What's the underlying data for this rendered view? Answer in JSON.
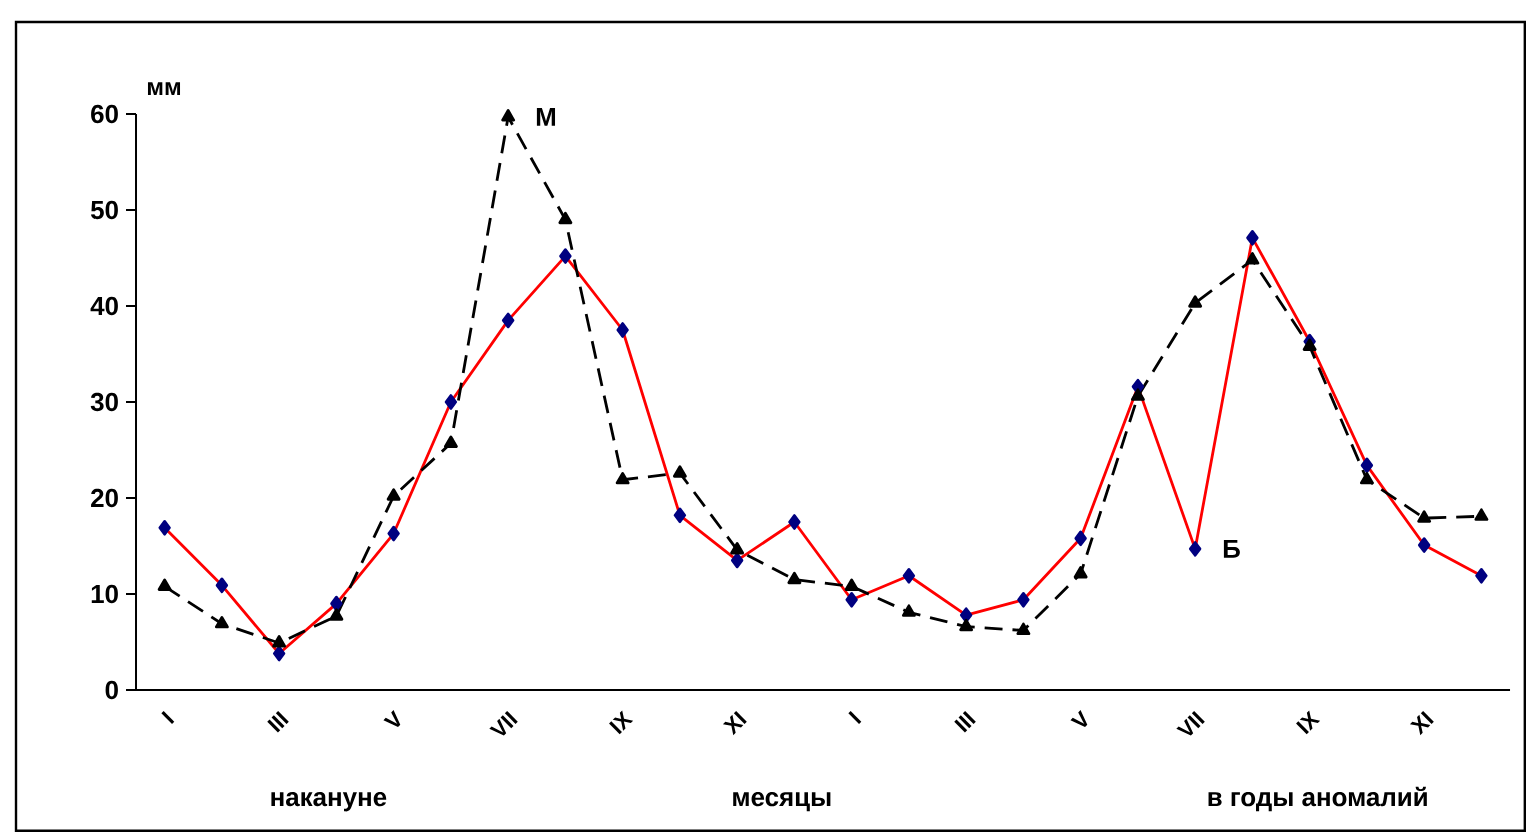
{
  "chart_data": {
    "type": "line",
    "xlabel": "месяцы",
    "ylabel": "мм",
    "categories": [
      "I",
      null,
      "III",
      null,
      "V",
      null,
      "VII",
      null,
      "IX",
      null,
      "XI",
      null,
      "I",
      null,
      "III",
      null,
      "V",
      null,
      "VII",
      null,
      "IX",
      null,
      "XI",
      null
    ],
    "series": [
      {
        "name": "Б",
        "color": "#ff0000",
        "marker": "diamond",
        "line_style": "solid",
        "values": [
          16.9,
          10.9,
          3.8,
          9,
          16.3,
          30,
          38.5,
          45.2,
          37.5,
          18.2,
          13.5,
          17.5,
          9.4,
          11.9,
          7.8,
          9.4,
          15.8,
          31.6,
          14.7,
          47.1,
          36.3,
          23.4,
          15.1,
          11.9
        ]
      },
      {
        "name": "М",
        "color": "#000000",
        "marker": "triangle",
        "line_style": "dashed",
        "values": [
          10.8,
          6.9,
          4.9,
          7.7,
          20.2,
          25.7,
          59.7,
          49,
          21.9,
          22.6,
          14.6,
          11.5,
          10.8,
          8.1,
          6.6,
          6.2,
          12.1,
          30.6,
          40.3,
          44.8,
          35.8,
          21.9,
          17.9,
          18.1
        ]
      }
    ],
    "ylim": [
      0,
      60
    ],
    "yticks": [
      0,
      10,
      20,
      30,
      40,
      50,
      60
    ],
    "grid": false,
    "legend": false,
    "annotations": [
      "накануне",
      "в годы аномалий"
    ]
  }
}
